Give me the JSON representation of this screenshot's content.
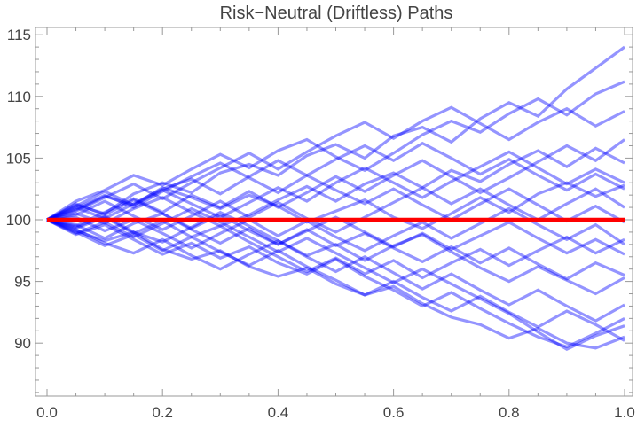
{
  "chart_data": {
    "type": "line",
    "title": "Risk−Neutral (Driftless) Paths",
    "xlabel": "",
    "ylabel": "",
    "xlim": [
      0,
      1
    ],
    "ylim": [
      85.7,
      115.6
    ],
    "x_ticks": [
      "0.0",
      "0.2",
      "0.4",
      "0.6",
      "0.8",
      "1.0"
    ],
    "y_ticks": [
      "90",
      "95",
      "100",
      "105",
      "110",
      "115"
    ],
    "grid": false,
    "legend": "none",
    "colors": {
      "paths": "#0000ff",
      "mean": "#ff0000",
      "frame": "#999999"
    },
    "x": [
      0,
      0.05,
      0.1,
      0.15,
      0.2,
      0.25,
      0.3,
      0.35,
      0.4,
      0.45,
      0.5,
      0.55,
      0.6,
      0.65,
      0.7,
      0.75,
      0.8,
      0.85,
      0.9,
      0.95,
      1.0
    ],
    "paths": [
      [
        100,
        101.2,
        100.5,
        102.1,
        103.0,
        102.2,
        103.8,
        104.5,
        103.6,
        105.2,
        106.1,
        105.0,
        106.8,
        107.5,
        106.3,
        108.2,
        109.5,
        108.4,
        110.6,
        112.3,
        114.0
      ],
      [
        100,
        99.1,
        98.3,
        99.0,
        97.6,
        96.8,
        97.5,
        96.2,
        95.4,
        96.1,
        94.8,
        93.9,
        94.6,
        93.2,
        92.1,
        91.5,
        90.4,
        91.2,
        90.0,
        89.6,
        90.5
      ],
      [
        100,
        100.8,
        101.9,
        101.2,
        102.6,
        101.8,
        100.9,
        102.0,
        101.1,
        99.8,
        100.7,
        101.6,
        100.2,
        99.3,
        100.5,
        101.8,
        100.6,
        102.1,
        103.0,
        101.9,
        102.8
      ],
      [
        100,
        99.4,
        100.3,
        99.0,
        98.2,
        99.4,
        100.6,
        99.5,
        98.3,
        97.1,
        98.0,
        96.7,
        97.9,
        98.8,
        97.4,
        96.1,
        95.0,
        96.2,
        95.1,
        94.0,
        95.3
      ],
      [
        100,
        101.5,
        102.4,
        103.6,
        102.8,
        104.1,
        105.3,
        104.2,
        105.6,
        106.5,
        105.1,
        104.0,
        105.4,
        106.9,
        108.0,
        107.1,
        108.6,
        109.8,
        108.5,
        110.2,
        111.2
      ],
      [
        100,
        98.8,
        99.6,
        98.4,
        97.2,
        98.1,
        96.9,
        97.8,
        96.5,
        95.6,
        96.8,
        95.4,
        94.3,
        93.0,
        94.1,
        92.8,
        91.6,
        90.5,
        89.7,
        90.8,
        92.0
      ],
      [
        100,
        100.5,
        99.7,
        100.9,
        101.8,
        100.6,
        99.5,
        100.4,
        101.6,
        102.7,
        101.5,
        102.9,
        103.8,
        102.6,
        104.0,
        103.1,
        104.5,
        105.6,
        104.3,
        105.8,
        104.6
      ],
      [
        100,
        99.6,
        98.5,
        99.7,
        100.5,
        99.2,
        98.1,
        99.3,
        98.0,
        99.1,
        100.2,
        99.0,
        97.8,
        98.9,
        97.6,
        98.7,
        99.8,
        98.5,
        97.3,
        98.4,
        97.2
      ],
      [
        100,
        101.0,
        100.1,
        101.3,
        102.5,
        103.3,
        102.1,
        103.5,
        104.8,
        103.6,
        104.9,
        106.0,
        104.8,
        106.2,
        105.0,
        103.7,
        104.9,
        103.6,
        102.4,
        103.7,
        102.5
      ],
      [
        100,
        99.0,
        97.9,
        98.8,
        97.5,
        98.6,
        99.5,
        98.2,
        97.0,
        95.8,
        96.9,
        95.6,
        96.7,
        95.3,
        96.5,
        97.6,
        96.3,
        97.5,
        98.6,
        97.3,
        98.4
      ],
      [
        100,
        100.9,
        102.0,
        101.0,
        102.3,
        103.5,
        104.6,
        103.4,
        102.2,
        103.6,
        102.4,
        101.3,
        102.5,
        101.2,
        100.0,
        101.3,
        102.5,
        101.2,
        99.9,
        101.1,
        99.8
      ],
      [
        100,
        99.3,
        100.2,
        98.9,
        99.9,
        98.6,
        97.4,
        96.3,
        97.5,
        96.2,
        95.1,
        93.9,
        95.0,
        93.7,
        92.6,
        93.8,
        92.5,
        91.3,
        92.6,
        91.5,
        90.2
      ],
      [
        100,
        100.7,
        101.8,
        102.9,
        101.7,
        103.0,
        104.2,
        105.4,
        104.1,
        105.5,
        106.8,
        107.9,
        106.6,
        108.0,
        109.1,
        107.8,
        106.5,
        107.9,
        109.0,
        107.6,
        108.8
      ],
      [
        100,
        99.2,
        98.1,
        97.3,
        98.4,
        97.1,
        96.0,
        97.2,
        98.3,
        97.0,
        95.8,
        97.0,
        95.7,
        94.4,
        95.6,
        94.3,
        93.1,
        94.3,
        93.0,
        91.8,
        93.1
      ],
      [
        100,
        100.4,
        101.5,
        100.3,
        99.2,
        100.3,
        101.5,
        100.2,
        101.4,
        100.1,
        99.0,
        100.2,
        101.4,
        102.6,
        101.3,
        102.5,
        101.2,
        100.0,
        101.3,
        102.5,
        101.0
      ],
      [
        100,
        101.3,
        100.4,
        101.6,
        100.5,
        99.3,
        100.4,
        99.1,
        98.0,
        99.2,
        97.9,
        98.9,
        97.7,
        96.6,
        97.8,
        96.5,
        97.7,
        96.4,
        95.2,
        96.5,
        95.5
      ],
      [
        100,
        99.5,
        100.6,
        101.7,
        100.6,
        102.0,
        101.0,
        102.3,
        101.0,
        102.2,
        103.5,
        102.3,
        103.6,
        104.8,
        103.5,
        102.2,
        103.4,
        104.7,
        106.0,
        104.8,
        106.5
      ],
      [
        100,
        100.2,
        99.1,
        100.0,
        98.9,
        97.7,
        98.9,
        100.0,
        98.7,
        99.9,
        98.6,
        97.5,
        98.7,
        99.8,
        98.5,
        99.7,
        100.9,
        99.6,
        98.4,
        99.6,
        98.0
      ],
      [
        100,
        98.9,
        99.8,
        98.6,
        99.7,
        100.9,
        99.8,
        98.6,
        97.4,
        98.5,
        97.3,
        96.1,
        94.9,
        96.0,
        94.8,
        93.6,
        92.4,
        90.9,
        89.5,
        90.6,
        91.4
      ],
      [
        100,
        101.1,
        102.3,
        101.2,
        102.4,
        101.3,
        100.2,
        101.4,
        102.6,
        101.5,
        103.0,
        104.2,
        103.0,
        101.8,
        103.1,
        104.3,
        105.5,
        104.2,
        102.9,
        104.1,
        103.0
      ]
    ],
    "mean_line": {
      "x": [
        0,
        1
      ],
      "y": [
        100,
        100
      ]
    }
  }
}
